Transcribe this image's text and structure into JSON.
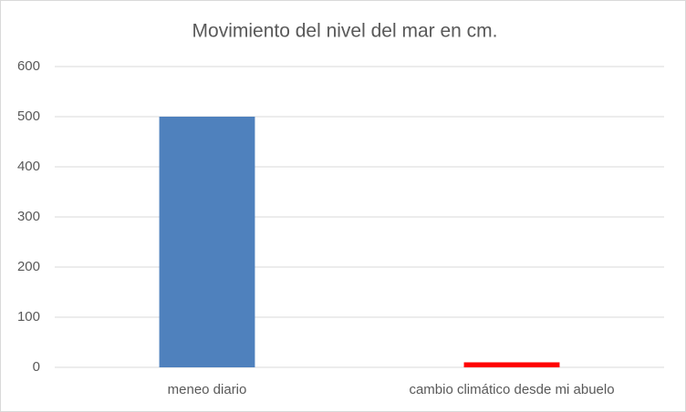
{
  "chart_data": {
    "type": "bar",
    "title": "Movimiento del nivel del mar en cm.",
    "categories": [
      "meneo diario",
      "cambio climático desde mi abuelo"
    ],
    "values": [
      500,
      10
    ],
    "colors": [
      "#4f81bd",
      "#ff0000"
    ],
    "ylim": [
      0,
      600
    ],
    "yticks": [
      0,
      100,
      200,
      300,
      400,
      500,
      600
    ],
    "grid": true
  }
}
